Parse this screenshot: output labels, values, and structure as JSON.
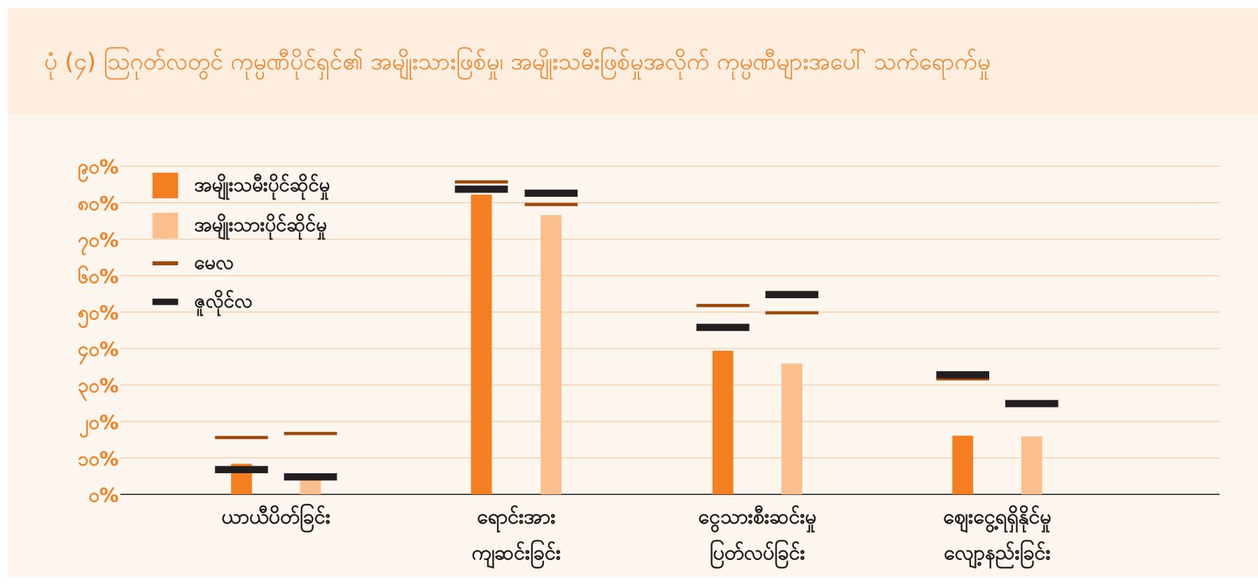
{
  "chart_data": {
    "type": "bar",
    "title": "ပုံ (၄) ဩဂုတ်လတွင် ကုမ္ပဏီပိုင်ရှင်၏ အမျိုးသားဖြစ်မှု၊ အမျိုးသမီးဖြစ်မှုအလိုက် ကုမ္ပဏီများအပေါ် သက်ရောက်မှု",
    "categories": [
      [
        "ယာယီပိတ်ခြင်း"
      ],
      [
        "ရောင်းအား",
        "ကျဆင်းခြင်း"
      ],
      [
        "ငွေသားစီးဆင်းမှု",
        "ပြတ်လပ်ခြင်း"
      ],
      [
        "ဈေးငွေ့ရရှိနိုင်မှု",
        "လျော့နည်းခြင်း"
      ]
    ],
    "series": [
      {
        "name": "အမျိုးသမီးပိုင်ဆိုင်မှု",
        "color": "#f47f20",
        "values": [
          8.4,
          82.2,
          39.4,
          16.1
        ]
      },
      {
        "name": "အမျိုးသားပိုင်ဆိုင်မှု",
        "color": "#fbbf8e",
        "values": [
          4.4,
          76.6,
          35.9,
          15.9
        ]
      }
    ],
    "markers": [
      {
        "name": "မေလ",
        "color": "#9c4a0b",
        "values": [
          [
            15.6,
            16.7
          ],
          [
            85.7,
            79.5
          ],
          [
            51.8,
            49.8
          ],
          [
            31.7,
            24.9
          ]
        ]
      },
      {
        "name": "ဇူလိုင်လ",
        "color": "#231f20",
        "values": [
          [
            6.8,
            4.8
          ],
          [
            83.7,
            82.6
          ],
          [
            45.8,
            54.8
          ],
          [
            32.8,
            24.9
          ]
        ]
      }
    ],
    "ylim": [
      0,
      90
    ],
    "yticks": [
      {
        "value": 0,
        "label": "၀%"
      },
      {
        "value": 10,
        "label": "၁၀%"
      },
      {
        "value": 20,
        "label": "၂၀%"
      },
      {
        "value": 30,
        "label": "၃၀%"
      },
      {
        "value": 40,
        "label": "၄၀%"
      },
      {
        "value": 50,
        "label": "၅၀%"
      },
      {
        "value": 60,
        "label": "၆၀%"
      },
      {
        "value": 70,
        "label": "၇၀%"
      },
      {
        "value": 80,
        "label": "၈၀%"
      },
      {
        "value": 90,
        "label": "၉၀%"
      }
    ],
    "grid": true,
    "legend": "upper-left"
  }
}
